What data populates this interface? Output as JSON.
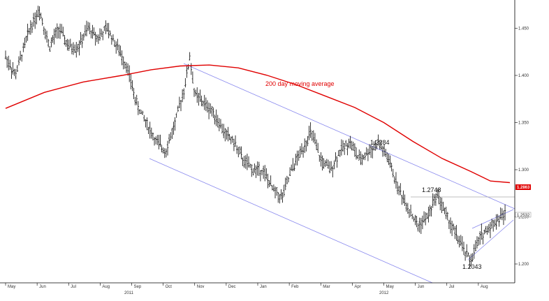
{
  "chart_data": {
    "type": "candlestick",
    "y_axis": {
      "ticks": [
        "1.450",
        "1.400",
        "1.350",
        "1.300",
        "1.250",
        "1.200"
      ],
      "tick_values": [
        1.45,
        1.4,
        1.35,
        1.3,
        1.25,
        1.2
      ],
      "ylim": [
        1.18,
        1.48
      ],
      "side": "right"
    },
    "x_axis": {
      "months": [
        "May",
        "Jun",
        "Jul",
        "Aug",
        "Sep",
        "Oct",
        "Nov",
        "Dec",
        "Jan",
        "Feb",
        "Mar",
        "Apr",
        "May",
        "Jun",
        "Jul",
        "Aug"
      ],
      "years": [
        "2011",
        "2012"
      ]
    },
    "price_series": {
      "name": "Price",
      "color": "#000000",
      "key_points": [
        {
          "x": 0,
          "y": 1.42
        },
        {
          "x": 2,
          "y": 1.4
        },
        {
          "x": 5,
          "y": 1.45
        },
        {
          "x": 7,
          "y": 1.47
        },
        {
          "x": 9,
          "y": 1.43
        },
        {
          "x": 11,
          "y": 1.45
        },
        {
          "x": 13,
          "y": 1.43
        },
        {
          "x": 15,
          "y": 1.43
        },
        {
          "x": 17,
          "y": 1.45
        },
        {
          "x": 19,
          "y": 1.44
        },
        {
          "x": 21,
          "y": 1.45
        },
        {
          "x": 23,
          "y": 1.43
        },
        {
          "x": 25,
          "y": 1.41
        },
        {
          "x": 27,
          "y": 1.37
        },
        {
          "x": 29,
          "y": 1.35
        },
        {
          "x": 31,
          "y": 1.33
        },
        {
          "x": 33,
          "y": 1.32
        },
        {
          "x": 35,
          "y": 1.35
        },
        {
          "x": 37,
          "y": 1.39
        },
        {
          "x": 38,
          "y": 1.42
        },
        {
          "x": 39,
          "y": 1.38
        },
        {
          "x": 41,
          "y": 1.37
        },
        {
          "x": 43,
          "y": 1.36
        },
        {
          "x": 45,
          "y": 1.34
        },
        {
          "x": 47,
          "y": 1.33
        },
        {
          "x": 49,
          "y": 1.31
        },
        {
          "x": 51,
          "y": 1.3
        },
        {
          "x": 53,
          "y": 1.3
        },
        {
          "x": 55,
          "y": 1.28
        },
        {
          "x": 57,
          "y": 1.27
        },
        {
          "x": 59,
          "y": 1.3
        },
        {
          "x": 61,
          "y": 1.32
        },
        {
          "x": 63,
          "y": 1.34
        },
        {
          "x": 65,
          "y": 1.31
        },
        {
          "x": 67,
          "y": 1.3
        },
        {
          "x": 69,
          "y": 1.32
        },
        {
          "x": 71,
          "y": 1.33
        },
        {
          "x": 73,
          "y": 1.31
        },
        {
          "x": 75,
          "y": 1.32
        },
        {
          "x": 77,
          "y": 1.3284
        },
        {
          "x": 79,
          "y": 1.31
        },
        {
          "x": 81,
          "y": 1.28
        },
        {
          "x": 83,
          "y": 1.26
        },
        {
          "x": 85,
          "y": 1.24
        },
        {
          "x": 87,
          "y": 1.25
        },
        {
          "x": 89,
          "y": 1.2748
        },
        {
          "x": 91,
          "y": 1.25
        },
        {
          "x": 93,
          "y": 1.23
        },
        {
          "x": 95,
          "y": 1.21
        },
        {
          "x": 96,
          "y": 1.2043
        },
        {
          "x": 98,
          "y": 1.23
        },
        {
          "x": 100,
          "y": 1.24
        },
        {
          "x": 102,
          "y": 1.25
        },
        {
          "x": 103,
          "y": 1.2532
        }
      ]
    },
    "moving_average": {
      "name": "200 day moving average",
      "color": "#e00000",
      "points": [
        {
          "x": 0,
          "y": 1.365
        },
        {
          "x": 8,
          "y": 1.382
        },
        {
          "x": 16,
          "y": 1.393
        },
        {
          "x": 24,
          "y": 1.4
        },
        {
          "x": 30,
          "y": 1.406
        },
        {
          "x": 36,
          "y": 1.41
        },
        {
          "x": 42,
          "y": 1.411
        },
        {
          "x": 48,
          "y": 1.408
        },
        {
          "x": 54,
          "y": 1.4
        },
        {
          "x": 60,
          "y": 1.39
        },
        {
          "x": 66,
          "y": 1.378
        },
        {
          "x": 72,
          "y": 1.366
        },
        {
          "x": 78,
          "y": 1.35
        },
        {
          "x": 84,
          "y": 1.33
        },
        {
          "x": 90,
          "y": 1.312
        },
        {
          "x": 96,
          "y": 1.298
        },
        {
          "x": 100,
          "y": 1.288
        },
        {
          "x": 104,
          "y": 1.2863
        }
      ]
    },
    "annotations": [
      {
        "text": "200 day moving average",
        "x": 54,
        "y": 1.402
      },
      {
        "text": "1.3284",
        "x": 76,
        "y": 1.336
      },
      {
        "text": "1.2748",
        "x": 87,
        "y": 1.281
      },
      {
        "text": "1.2043",
        "x": 95,
        "y": 1.196
      }
    ],
    "price_badges": [
      {
        "text": "1.2863",
        "y": 1.2863,
        "bg": "#e00000"
      },
      {
        "text": "1.2532",
        "y": 1.2532,
        "bg": "#ffffff"
      }
    ],
    "grid": false
  }
}
